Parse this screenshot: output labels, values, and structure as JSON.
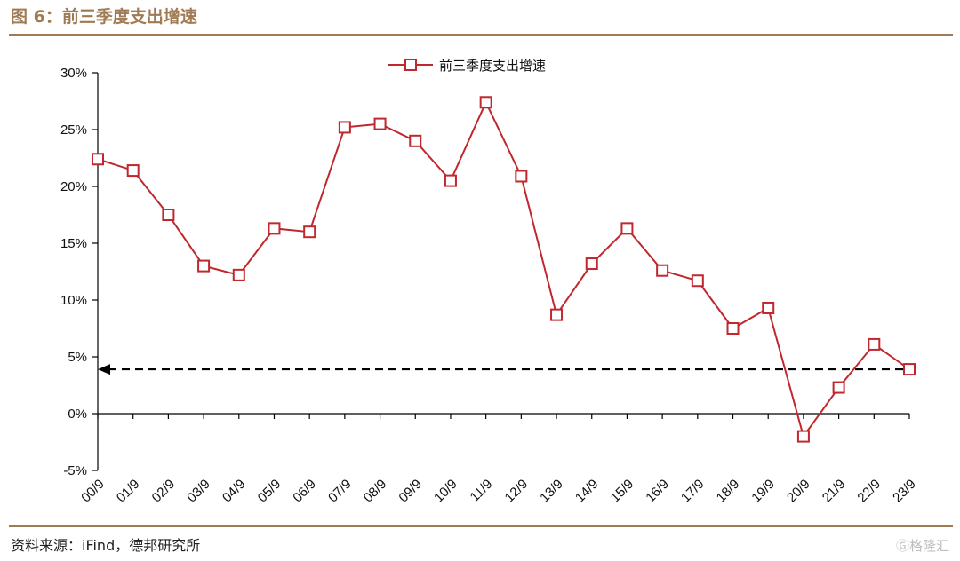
{
  "figure": {
    "title": "图 6：前三季度支出增速",
    "source": "资料来源：iFind，德邦研究所",
    "watermark": "Ⓖ格隆汇"
  },
  "colors": {
    "accent": "#a07a52",
    "series": "#c0282d",
    "reference_line": "#000000"
  },
  "chart_data": {
    "type": "line",
    "categories": [
      "00/9",
      "01/9",
      "02/9",
      "03/9",
      "04/9",
      "05/9",
      "06/9",
      "07/9",
      "08/9",
      "09/9",
      "10/9",
      "11/9",
      "12/9",
      "13/9",
      "14/9",
      "15/9",
      "16/9",
      "17/9",
      "18/9",
      "19/9",
      "20/9",
      "21/9",
      "22/9",
      "23/9"
    ],
    "series": [
      {
        "name": "前三季度支出增速",
        "marker": "hollow-square",
        "values": [
          22.4,
          21.4,
          17.5,
          13.0,
          12.2,
          16.3,
          16.0,
          25.2,
          25.5,
          24.0,
          20.5,
          27.4,
          20.9,
          8.7,
          13.2,
          16.3,
          12.6,
          11.7,
          7.5,
          9.3,
          -2.0,
          2.3,
          6.1,
          3.9
        ]
      }
    ],
    "reference_line": {
      "value": 3.9,
      "style": "dashed",
      "arrow": "left"
    },
    "ylim": [
      -5,
      30
    ],
    "yticks": [
      -5,
      0,
      5,
      10,
      15,
      20,
      25,
      30
    ],
    "ytick_labels": [
      "-5%",
      "0%",
      "5%",
      "10%",
      "15%",
      "20%",
      "25%",
      "30%"
    ],
    "xlabel": "",
    "ylabel": "",
    "legend": "top-center",
    "grid": false
  }
}
